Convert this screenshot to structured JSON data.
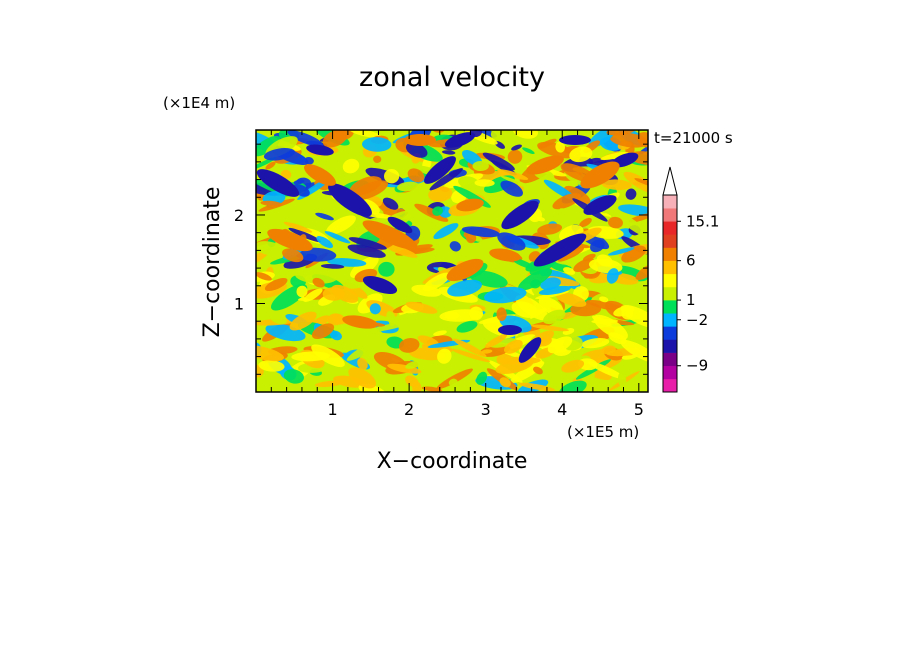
{
  "chart_data": {
    "type": "heatmap",
    "title": "zonal velocity",
    "xlabel": "X−coordinate",
    "ylabel": "Z−coordinate",
    "x_multiplier": "(×1E5 m)",
    "y_multiplier": "(×1E4 m)",
    "time_label": "t=21000 s",
    "x_ticks": [
      {
        "value": 1,
        "label": "1"
      },
      {
        "value": 2,
        "label": "2"
      },
      {
        "value": 3,
        "label": "3"
      },
      {
        "value": 4,
        "label": "4"
      },
      {
        "value": 5,
        "label": "5"
      }
    ],
    "y_ticks": [
      {
        "value": 1,
        "label": "1"
      },
      {
        "value": 2,
        "label": "2"
      }
    ],
    "xlim": [
      0,
      5.12
    ],
    "ylim": [
      0,
      2.96
    ],
    "colorbar": {
      "colors": [
        "#e81fa8",
        "#b300a0",
        "#7a0088",
        "#1c14aa",
        "#0d3cdc",
        "#00b4ff",
        "#00e058",
        "#c8f000",
        "#ffff00",
        "#ffc000",
        "#f08000",
        "#e04020",
        "#e82828",
        "#f07878",
        "#f8b0b8"
      ],
      "extend_top_color": "#ffffff",
      "tick_labels": [
        {
          "boundary": 13,
          "label": "15.1"
        },
        {
          "boundary": 10,
          "label": "6"
        },
        {
          "boundary": 7,
          "label": "1"
        },
        {
          "boundary": 5.5,
          "label": "−2"
        },
        {
          "boundary": 2,
          "label": "−9"
        }
      ]
    }
  }
}
